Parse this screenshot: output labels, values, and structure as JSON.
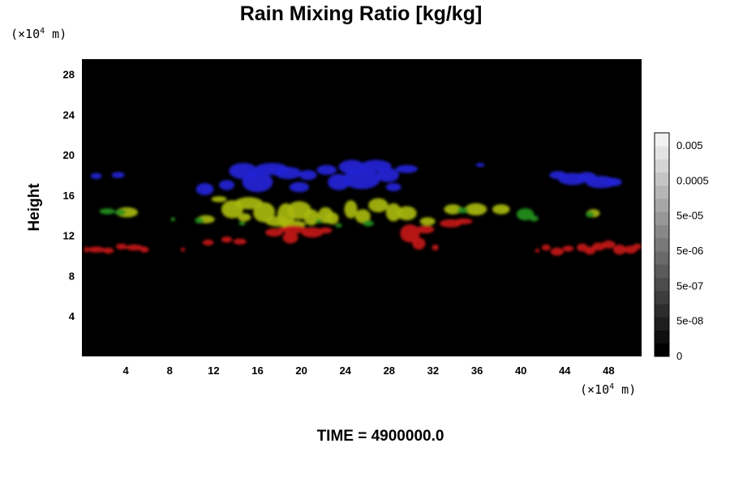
{
  "chart_data": {
    "type": "heatmap",
    "title": "Rain Mixing Ratio [kg/kg]",
    "ylabel": "Height",
    "xlabel": "",
    "unit_prefix": "(×10",
    "unit_exp": "4",
    "unit_suffix": " m)",
    "x_ticks": [
      "4",
      "8",
      "12",
      "16",
      "20",
      "24",
      "28",
      "32",
      "36",
      "40",
      "44",
      "48"
    ],
    "y_ticks": [
      "4",
      "8",
      "12",
      "16",
      "20",
      "24",
      "28"
    ],
    "xlim": [
      0,
      51
    ],
    "ylim": [
      0,
      29.5
    ],
    "background": "#000000",
    "colorbar": {
      "labels": [
        "0.005",
        "0.0005",
        "5e-05",
        "5e-06",
        "5e-07",
        "5e-08",
        "0"
      ],
      "steps": 17,
      "color_dark": "#000000",
      "color_light": "#f2f2f2"
    },
    "series": [
      {
        "color": "#2424d8",
        "blobs": [
          [
            1.3,
            17.9,
            0.5,
            0.3
          ],
          [
            3.3,
            18.0,
            0.6,
            0.3
          ],
          [
            11.2,
            16.6,
            0.8,
            0.6
          ],
          [
            13.2,
            17.0,
            0.7,
            0.5
          ],
          [
            14.7,
            18.4,
            1.3,
            0.8
          ],
          [
            16.0,
            17.3,
            1.4,
            1.0
          ],
          [
            17.3,
            18.6,
            1.5,
            0.6
          ],
          [
            18.8,
            18.2,
            1.2,
            0.6
          ],
          [
            19.8,
            16.8,
            0.9,
            0.5
          ],
          [
            20.6,
            18.0,
            0.8,
            0.5
          ],
          [
            22.3,
            18.5,
            0.9,
            0.5
          ],
          [
            23.4,
            17.3,
            1.0,
            0.8
          ],
          [
            24.6,
            18.8,
            1.2,
            0.7
          ],
          [
            25.5,
            17.6,
            1.7,
            1.0
          ],
          [
            26.8,
            18.9,
            1.4,
            0.6
          ],
          [
            27.9,
            18.0,
            1.0,
            0.7
          ],
          [
            29.6,
            18.6,
            1.0,
            0.4
          ],
          [
            28.4,
            16.8,
            0.7,
            0.4
          ],
          [
            43.4,
            18.0,
            0.8,
            0.4
          ],
          [
            44.7,
            17.6,
            1.3,
            0.6
          ],
          [
            46.0,
            17.8,
            0.9,
            0.5
          ],
          [
            47.3,
            17.3,
            1.4,
            0.6
          ],
          [
            48.5,
            17.3,
            0.7,
            0.4
          ],
          [
            36.3,
            19.0,
            0.4,
            0.2
          ]
        ]
      },
      {
        "color": "#a8b80e",
        "blobs": [
          [
            12.5,
            15.6,
            0.7,
            0.3
          ],
          [
            13.7,
            14.6,
            1.0,
            0.9
          ],
          [
            15.2,
            15.2,
            1.3,
            0.6
          ],
          [
            14.8,
            13.8,
            0.6,
            0.4
          ],
          [
            16.6,
            14.3,
            1.0,
            1.0
          ],
          [
            17.8,
            13.4,
            1.1,
            0.5
          ],
          [
            18.6,
            14.0,
            0.8,
            1.2
          ],
          [
            19.8,
            14.5,
            1.1,
            0.9
          ],
          [
            19.2,
            13.1,
            1.2,
            0.4
          ],
          [
            20.9,
            13.8,
            0.7,
            0.8
          ],
          [
            22.2,
            14.0,
            0.7,
            0.8
          ],
          [
            22.8,
            13.7,
            0.6,
            0.6
          ],
          [
            24.5,
            14.6,
            0.6,
            0.9
          ],
          [
            25.6,
            13.9,
            0.7,
            0.7
          ],
          [
            27.0,
            15.0,
            0.9,
            0.7
          ],
          [
            28.4,
            14.3,
            0.7,
            0.9
          ],
          [
            29.6,
            14.2,
            0.9,
            0.7
          ],
          [
            31.5,
            13.4,
            0.7,
            0.4
          ],
          [
            33.8,
            14.6,
            0.8,
            0.5
          ],
          [
            35.9,
            14.6,
            1.0,
            0.6
          ],
          [
            38.2,
            14.6,
            0.8,
            0.5
          ],
          [
            11.3,
            13.6,
            0.8,
            0.4
          ],
          [
            4.1,
            14.3,
            1.0,
            0.5
          ],
          [
            46.6,
            14.2,
            0.6,
            0.4
          ]
        ]
      },
      {
        "color": "#22901e",
        "blobs": [
          [
            2.3,
            14.4,
            0.7,
            0.3
          ],
          [
            3.5,
            14.3,
            0.5,
            0.3
          ],
          [
            10.7,
            13.5,
            0.4,
            0.3
          ],
          [
            40.4,
            14.1,
            0.8,
            0.6
          ],
          [
            41.2,
            13.7,
            0.4,
            0.3
          ],
          [
            46.3,
            14.1,
            0.4,
            0.3
          ],
          [
            34.7,
            14.5,
            0.5,
            0.3
          ],
          [
            26.1,
            13.2,
            0.5,
            0.3
          ],
          [
            14.6,
            13.2,
            0.3,
            0.2
          ],
          [
            8.3,
            13.6,
            0.2,
            0.2
          ],
          [
            23.4,
            13.0,
            0.3,
            0.2
          ],
          [
            21.6,
            13.4,
            0.3,
            0.2
          ]
        ]
      },
      {
        "color": "#c41414",
        "blobs": [
          [
            0.4,
            10.6,
            0.2,
            0.3
          ],
          [
            1.3,
            10.6,
            0.8,
            0.3
          ],
          [
            2.4,
            10.5,
            0.5,
            0.3
          ],
          [
            3.6,
            10.9,
            0.5,
            0.3
          ],
          [
            4.8,
            10.8,
            0.8,
            0.3
          ],
          [
            5.7,
            10.6,
            0.4,
            0.3
          ],
          [
            11.5,
            11.3,
            0.5,
            0.3
          ],
          [
            13.2,
            11.6,
            0.5,
            0.3
          ],
          [
            14.4,
            11.4,
            0.6,
            0.3
          ],
          [
            17.5,
            12.3,
            0.8,
            0.4
          ],
          [
            19.3,
            12.6,
            1.2,
            0.4
          ],
          [
            19.0,
            11.8,
            0.7,
            0.6
          ],
          [
            21.0,
            12.3,
            1.0,
            0.5
          ],
          [
            22.2,
            12.5,
            0.6,
            0.3
          ],
          [
            29.9,
            12.2,
            0.9,
            0.9
          ],
          [
            30.7,
            11.2,
            0.6,
            0.6
          ],
          [
            31.3,
            12.6,
            0.8,
            0.4
          ],
          [
            33.6,
            13.2,
            1.0,
            0.4
          ],
          [
            34.8,
            13.4,
            0.8,
            0.3
          ],
          [
            32.2,
            10.8,
            0.3,
            0.3
          ],
          [
            18.3,
            12.6,
            0.5,
            0.2
          ],
          [
            41.5,
            10.5,
            0.2,
            0.2
          ],
          [
            42.3,
            10.8,
            0.4,
            0.3
          ],
          [
            43.3,
            10.4,
            0.6,
            0.4
          ],
          [
            44.3,
            10.7,
            0.5,
            0.3
          ],
          [
            45.6,
            10.8,
            0.5,
            0.4
          ],
          [
            46.3,
            10.5,
            0.5,
            0.4
          ],
          [
            47.1,
            10.9,
            0.6,
            0.4
          ],
          [
            48.0,
            11.1,
            0.6,
            0.4
          ],
          [
            49.0,
            10.6,
            0.6,
            0.5
          ],
          [
            50.0,
            10.6,
            0.6,
            0.4
          ],
          [
            50.6,
            10.9,
            0.4,
            0.3
          ],
          [
            9.2,
            10.6,
            0.2,
            0.2
          ]
        ]
      }
    ]
  },
  "footer": {
    "time_label": "TIME =",
    "time_value": " 4900000.0"
  }
}
